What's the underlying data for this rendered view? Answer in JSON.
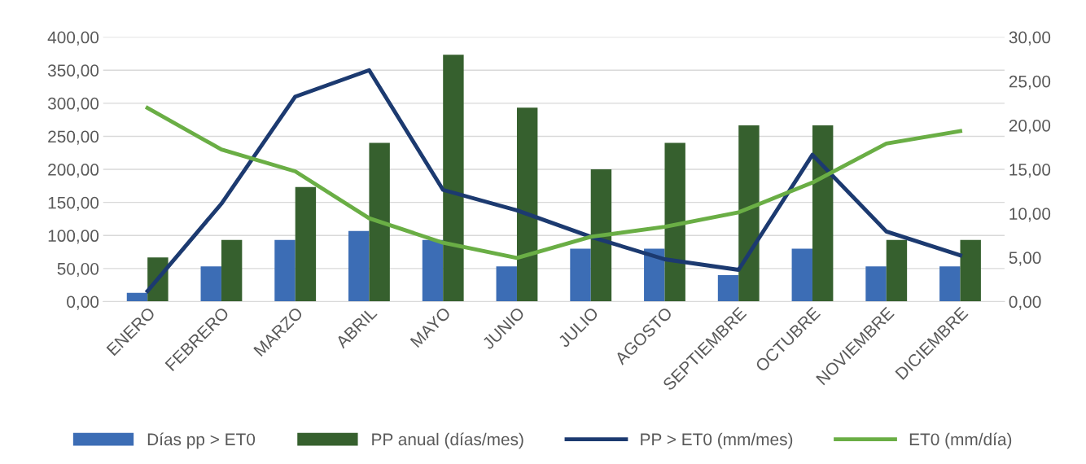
{
  "chart_data": {
    "type": "bar",
    "categories": [
      "ENERO",
      "FEBRERO",
      "MARZO",
      "ABRIL",
      "MAYO",
      "JUNIO",
      "JULIO",
      "AGOSTO",
      "SEPTIEMBRE",
      "OCTUBRE",
      "NOVIEMBRE",
      "DICIEMBRE"
    ],
    "series": [
      {
        "name": "Días pp > ET0",
        "axis": "y2",
        "color": "#3c6db5",
        "values": [
          1,
          4,
          7,
          8,
          7,
          4,
          6,
          6,
          3,
          6,
          4,
          4
        ]
      },
      {
        "name": "PP anual (días/mes)",
        "axis": "y2",
        "color": "#36602e",
        "values": [
          5,
          7,
          13,
          18,
          28,
          22,
          15,
          18,
          20,
          20,
          7,
          7
        ]
      },
      {
        "name": "PP > ET0 (mm/mes)",
        "type": "line",
        "color": "#1c3a70",
        "values": [
          16,
          148,
          310,
          350,
          169,
          138,
          98,
          64,
          48,
          222,
          106,
          70
        ]
      },
      {
        "name": "ET0 (mm/día)",
        "type": "line",
        "color": "#6aae45",
        "values": [
          293,
          230,
          197,
          126,
          89,
          66,
          98,
          113,
          135,
          180,
          239,
          258
        ]
      }
    ],
    "ylim": [
      0,
      400
    ],
    "yticks": [
      {
        "value": 0,
        "label": "0,00"
      },
      {
        "value": 50,
        "label": "50,00"
      },
      {
        "value": 100,
        "label": "100,00"
      },
      {
        "value": 150,
        "label": "150,00"
      },
      {
        "value": 200,
        "label": "200,00"
      },
      {
        "value": 250,
        "label": "250,00"
      },
      {
        "value": 300,
        "label": "300,00"
      },
      {
        "value": 350,
        "label": "350,00"
      },
      {
        "value": 400,
        "label": "400,00"
      }
    ],
    "y2lim": [
      0,
      30
    ],
    "y2ticks": [
      {
        "value": 0,
        "label": "0,00"
      },
      {
        "value": 5,
        "label": "5,00"
      },
      {
        "value": 10,
        "label": "10,00"
      },
      {
        "value": 15,
        "label": "15,00"
      },
      {
        "value": 20,
        "label": "20,00"
      },
      {
        "value": 25,
        "label": "25,00"
      },
      {
        "value": 30,
        "label": "30,00"
      }
    ],
    "grid": "y",
    "legend": "bottom",
    "marker": "none",
    "line_style": "solid"
  }
}
